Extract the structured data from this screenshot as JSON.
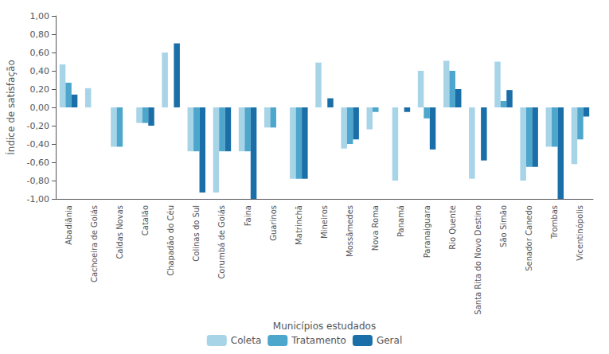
{
  "chart_data": {
    "type": "bar",
    "xlabel": "Municípios estudados",
    "ylabel": "Índice de satisfação",
    "categories": [
      "Abadiânia",
      "Cachoeira de Goiás",
      "Caldas Novas",
      "Catalão",
      "Chapadão do Céu",
      "Colinas do Sul",
      "Corumbá de Goiás",
      "Faina",
      "Guarinos",
      "Matrinchã",
      "Mineiros",
      "Mossâmedes",
      "Nova Roma",
      "Panamá",
      "Paranaiguara",
      "Rio Quente",
      "Santa Rita do Novo Destino",
      "São Simão",
      "Senador Canedo",
      "Trombas",
      "Vicentinópolis"
    ],
    "series": [
      {
        "name": "Coleta",
        "color": "#a8d4e8",
        "values": [
          0.47,
          0.21,
          -0.43,
          -0.17,
          0.6,
          -0.48,
          -0.93,
          -0.48,
          -0.22,
          -0.78,
          0.49,
          -0.45,
          -0.24,
          -0.8,
          0.4,
          0.51,
          -0.78,
          0.5,
          -0.8,
          -0.43,
          -0.62
        ]
      },
      {
        "name": "Tratamento",
        "color": "#4da6cc",
        "values": [
          0.27,
          0.0,
          -0.43,
          -0.17,
          0.0,
          -0.48,
          -0.48,
          -0.48,
          -0.22,
          -0.78,
          0.0,
          -0.4,
          -0.05,
          0.0,
          -0.12,
          0.4,
          0.0,
          0.07,
          -0.65,
          -0.43,
          -0.35
        ]
      },
      {
        "name": "Geral",
        "color": "#1a6fa8",
        "values": [
          0.14,
          0.0,
          0.0,
          -0.2,
          0.7,
          -0.93,
          -0.48,
          -1.0,
          0.0,
          -0.78,
          0.1,
          -0.35,
          0.0,
          -0.05,
          -0.46,
          0.2,
          -0.58,
          0.19,
          -0.65,
          -1.0,
          -0.1
        ]
      }
    ],
    "ylim": [
      -1.0,
      1.0
    ],
    "yticks": [
      {
        "value": -1.0,
        "label": "-1,00"
      },
      {
        "value": -0.8,
        "label": "-0,80"
      },
      {
        "value": -0.6,
        "label": "-0,60"
      },
      {
        "value": -0.4,
        "label": "-0,40"
      },
      {
        "value": -0.2,
        "label": "-0,20"
      },
      {
        "value": 0.0,
        "label": "0,00"
      },
      {
        "value": 0.2,
        "label": "0,20"
      },
      {
        "value": 0.4,
        "label": "0,40"
      },
      {
        "value": 0.6,
        "label": "0,60"
      },
      {
        "value": 0.8,
        "label": "0,80"
      },
      {
        "value": 1.0,
        "label": "1,00"
      }
    ],
    "grid": false,
    "legend": "bottom"
  }
}
